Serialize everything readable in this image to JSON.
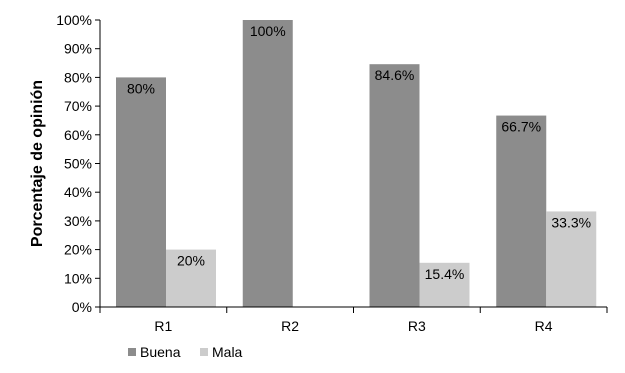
{
  "chart_data": {
    "type": "bar",
    "categories": [
      "R1",
      "R2",
      "R3",
      "R4"
    ],
    "series": [
      {
        "name": "Buena",
        "values": [
          80,
          100,
          84.6,
          66.7
        ],
        "labels": [
          "80%",
          "100%",
          "84.6%",
          "66.7%"
        ],
        "color": "#8c8c8c"
      },
      {
        "name": "Mala",
        "values": [
          20,
          0,
          15.4,
          33.3
        ],
        "labels": [
          "20%",
          "",
          "15.4%",
          "33.3%"
        ],
        "color": "#cccccc"
      }
    ],
    "ylabel": "Porcentaje de opinión",
    "ylim": [
      0,
      100
    ],
    "yticks": [
      0,
      10,
      20,
      30,
      40,
      50,
      60,
      70,
      80,
      90,
      100
    ],
    "ytick_labels": [
      "0%",
      "10%",
      "20%",
      "30%",
      "40%",
      "50%",
      "60%",
      "70%",
      "80%",
      "90%",
      "100%"
    ],
    "grid": false,
    "legend_position": "bottom-left"
  }
}
